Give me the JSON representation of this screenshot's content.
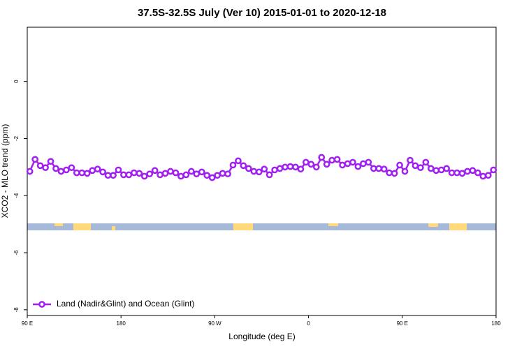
{
  "chart_data": {
    "type": "line",
    "title": "37.5S-32.5S July (Ver 10)   2015-01-01 to 2020-12-18",
    "xlabel": "Longitude (deg E)",
    "ylabel": "XCO2 - MLO trend (ppm)",
    "x": [
      92.5,
      97.5,
      102.5,
      107.5,
      112.5,
      117.5,
      122.5,
      127.5,
      132.5,
      137.5,
      142.5,
      147.5,
      152.5,
      157.5,
      162.5,
      167.5,
      172.5,
      177.5,
      182.5,
      187.5,
      192.5,
      197.5,
      202.5,
      207.5,
      212.5,
      217.5,
      222.5,
      227.5,
      232.5,
      237.5,
      242.5,
      247.5,
      252.5,
      257.5,
      262.5,
      267.5,
      272.5,
      277.5,
      282.5,
      287.5,
      292.5,
      297.5,
      302.5,
      307.5,
      312.5,
      317.5,
      322.5,
      327.5,
      332.5,
      337.5,
      342.5,
      347.5,
      352.5,
      357.5,
      362.5,
      367.5,
      372.5,
      377.5,
      382.5,
      387.5,
      392.5,
      397.5,
      402.5,
      407.5,
      412.5,
      417.5,
      422.5,
      427.5,
      432.5,
      437.5,
      442.5,
      447.5,
      452.5,
      457.5,
      462.5,
      467.5,
      472.5,
      477.5,
      482.5,
      487.5,
      492.5,
      497.5,
      502.5,
      507.5,
      512.5,
      517.5,
      522.5,
      527.5,
      532.5,
      537.5
    ],
    "series": [
      {
        "name": "Land (Nadir&Glint) and Ocean (Glint)",
        "color": "#a020f0",
        "values": [
          -3.15,
          -2.73,
          -2.95,
          -3.02,
          -2.8,
          -3.05,
          -3.15,
          -3.1,
          -3.02,
          -3.2,
          -3.2,
          -3.22,
          -3.12,
          -3.07,
          -3.17,
          -3.29,
          -3.29,
          -3.1,
          -3.27,
          -3.27,
          -3.2,
          -3.22,
          -3.32,
          -3.24,
          -3.12,
          -3.27,
          -3.22,
          -3.15,
          -3.2,
          -3.32,
          -3.27,
          -3.15,
          -3.24,
          -3.17,
          -3.29,
          -3.37,
          -3.29,
          -3.22,
          -3.24,
          -2.93,
          -2.78,
          -2.95,
          -3.05,
          -3.15,
          -3.17,
          -3.07,
          -3.27,
          -3.1,
          -3.05,
          -3.0,
          -2.98,
          -3.0,
          -3.07,
          -2.83,
          -2.9,
          -3.0,
          -2.66,
          -2.9,
          -2.76,
          -2.73,
          -2.93,
          -2.88,
          -2.83,
          -2.98,
          -2.88,
          -2.83,
          -3.05,
          -3.05,
          -3.07,
          -3.2,
          -3.22,
          -2.93,
          -3.15,
          -2.76,
          -2.95,
          -3.02,
          -2.83,
          -3.05,
          -3.12,
          -3.1,
          -3.05,
          -3.2,
          -3.2,
          -3.22,
          -3.15,
          -3.12,
          -3.2,
          -3.32,
          -3.29,
          -3.1
        ]
      }
    ],
    "xlim": [
      90,
      540
    ],
    "xticks": [
      {
        "value": 90,
        "label": "90 E"
      },
      180,
      {
        "value": 270,
        "label": "90 W"
      },
      {
        "value": 360,
        "label": "0"
      },
      {
        "value": 450,
        "label": "90 E"
      },
      {
        "value": 540,
        "label": "180"
      }
    ],
    "ylim": [
      -8.2,
      1.9
    ],
    "yticks": [
      0,
      -2,
      -4,
      -6,
      -8
    ],
    "legend": "bottom-left"
  }
}
